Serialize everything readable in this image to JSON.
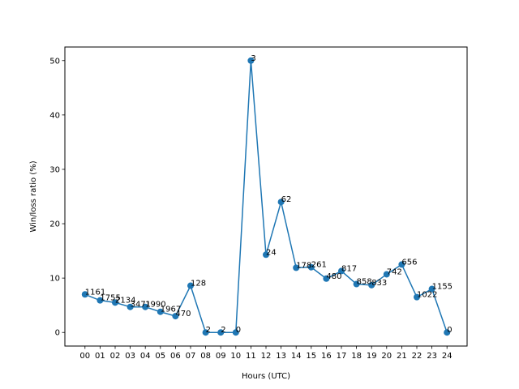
{
  "chart_data": {
    "type": "line",
    "title": "",
    "xlabel": "Hours (UTC)",
    "ylabel": "Win/loss ratio (%)",
    "categories": [
      "00",
      "01",
      "02",
      "03",
      "04",
      "05",
      "06",
      "07",
      "08",
      "09",
      "10",
      "11",
      "12",
      "13",
      "14",
      "15",
      "16",
      "17",
      "18",
      "19",
      "20",
      "21",
      "22",
      "23",
      "24"
    ],
    "series": [
      {
        "name": "",
        "color": "#1f77b4",
        "values": [
          7.0,
          5.9,
          5.5,
          4.7,
          4.7,
          3.8,
          3.0,
          8.6,
          0.0,
          0.0,
          0.0,
          50.0,
          14.3,
          24.0,
          11.9,
          12.0,
          9.9,
          11.3,
          8.9,
          8.7,
          10.7,
          12.5,
          6.5,
          8.0,
          0.0
        ],
        "labels": [
          "1161",
          "1755",
          "2134",
          "3471",
          "1990",
          "1967",
          "470",
          "128",
          "2",
          "2",
          "0",
          "3",
          "24",
          "62",
          "178",
          "261",
          "480",
          "817",
          "858",
          "833",
          "742",
          "656",
          "1022",
          "1155",
          "0"
        ]
      }
    ],
    "ylim": [
      -2.5,
      52.5
    ],
    "yticks": [
      0,
      10,
      20,
      30,
      40,
      50
    ],
    "grid": false,
    "legend": "none"
  }
}
